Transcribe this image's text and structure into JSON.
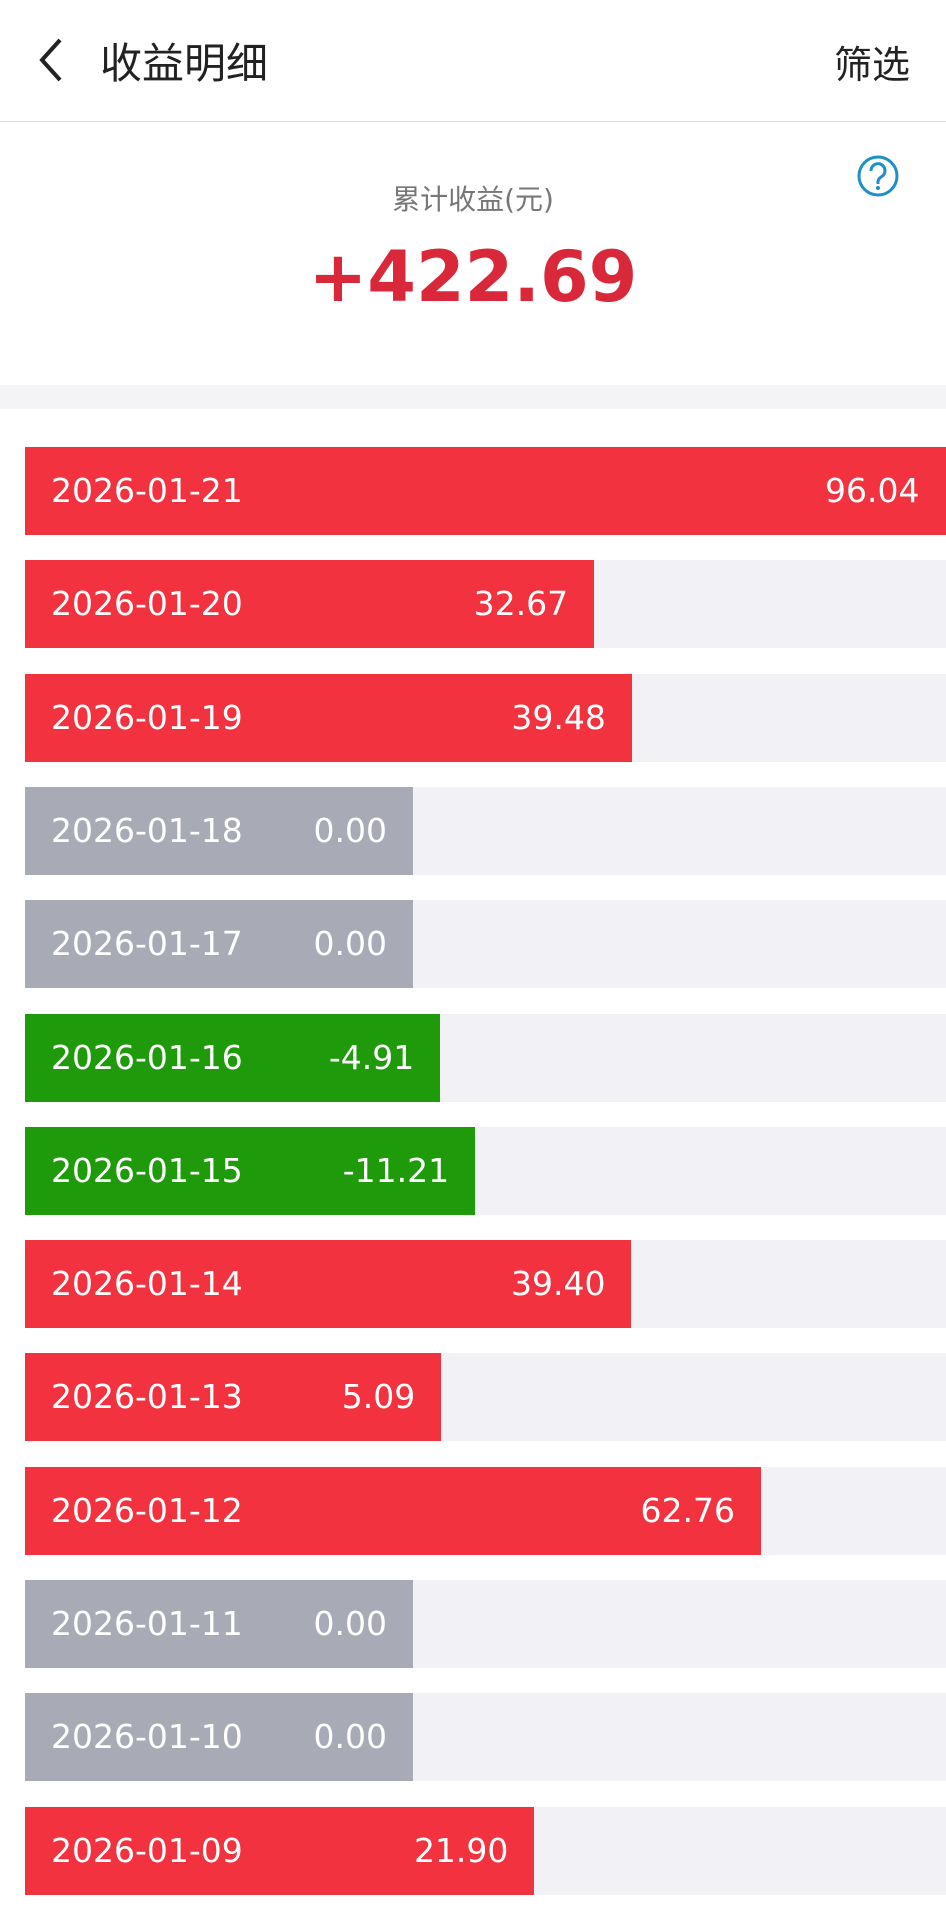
{
  "header": {
    "title": "收益明细",
    "action": "筛选"
  },
  "summary": {
    "label": "累计收益(元)",
    "total": "+422.69"
  },
  "rows": [
    {
      "date": "2026-01-21",
      "value": 96.04,
      "label": "96.04"
    },
    {
      "date": "2026-01-20",
      "value": 32.67,
      "label": "32.67"
    },
    {
      "date": "2026-01-19",
      "value": 39.48,
      "label": "39.48"
    },
    {
      "date": "2026-01-18",
      "value": 0,
      "label": "0.00"
    },
    {
      "date": "2026-01-17",
      "value": 0,
      "label": "0.00"
    },
    {
      "date": "2026-01-16",
      "value": -4.91,
      "label": "-4.91"
    },
    {
      "date": "2026-01-15",
      "value": -11.21,
      "label": "-11.21"
    },
    {
      "date": "2026-01-14",
      "value": 39.4,
      "label": "39.40"
    },
    {
      "date": "2026-01-13",
      "value": 5.09,
      "label": "5.09"
    },
    {
      "date": "2026-01-12",
      "value": 62.76,
      "label": "62.76"
    },
    {
      "date": "2026-01-11",
      "value": 0,
      "label": "0.00"
    },
    {
      "date": "2026-01-10",
      "value": 0,
      "label": "0.00"
    },
    {
      "date": "2026-01-09",
      "value": 21.9,
      "label": "21.90"
    }
  ]
}
